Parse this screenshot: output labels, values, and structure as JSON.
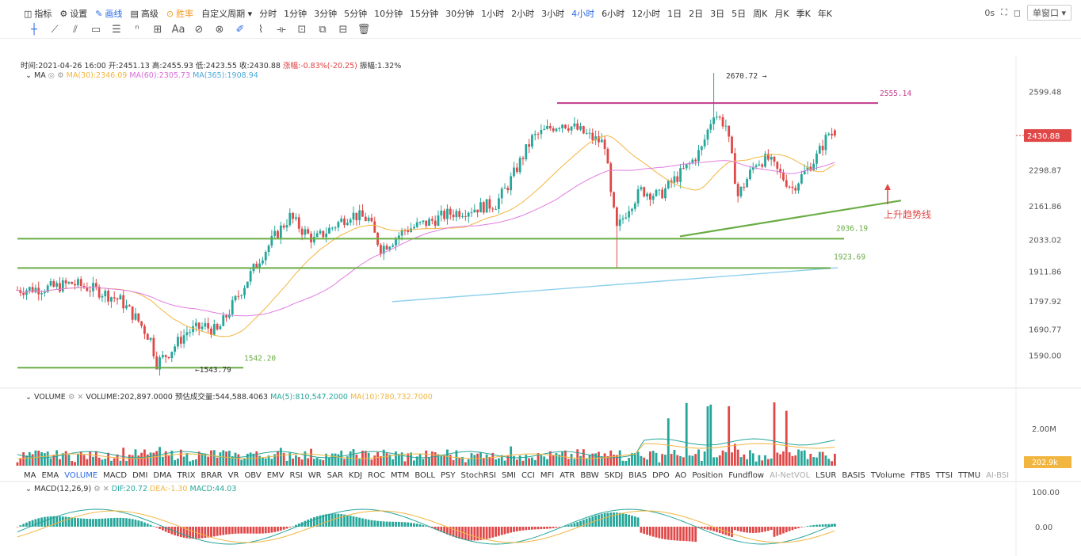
{
  "toolbar": {
    "items": [
      {
        "icon": "indicator-icon",
        "label": "指标"
      },
      {
        "icon": "settings-icon",
        "label": "设置"
      },
      {
        "icon": "pen-icon",
        "label": "画线",
        "active": true
      },
      {
        "icon": "advanced-icon",
        "label": "高级"
      },
      {
        "icon": "win-rate-icon",
        "label": "胜率",
        "win": true
      }
    ],
    "custom_period": "自定义周期",
    "periods": [
      "分时",
      "1分钟",
      "3分钟",
      "5分钟",
      "10分钟",
      "15分钟",
      "30分钟",
      "1小时",
      "2小时",
      "3小时",
      "4小时",
      "6小时",
      "12小时",
      "1日",
      "2日",
      "3日",
      "5日",
      "周K",
      "月K",
      "季K",
      "年K"
    ],
    "active_period": "4小时",
    "latency": "0s",
    "window_mode": "单窗口"
  },
  "draw_tools": [
    "crosshair-icon",
    "trend-line-icon",
    "parallel-lines-icon",
    "rectangle-icon",
    "horizontal-lines-icon",
    "fib-icon",
    "measure-icon",
    "text-icon",
    "magnet-icon",
    "lock-icon",
    "eraser-icon",
    "brush-icon",
    "pattern-icon",
    "position-icon",
    "clone-icon",
    "template-icon",
    "delete-icon"
  ],
  "ohlc": {
    "time": "时间:2021-04-26 16:00",
    "open": "开:2451.13",
    "high": "高:2455.93",
    "low": "低:2423.55",
    "close": "收:2430.88",
    "change": "涨幅:-0.83%(-20.25)",
    "amplitude": "振幅:1.32%"
  },
  "ma_legend": {
    "name": "MA",
    "ma30": "MA(30):2346.09",
    "ma60": "MA(60):2305.73",
    "ma365": "MA(365):1908.94"
  },
  "volume_legend": {
    "name": "VOLUME",
    "vol": "VOLUME:202,897.0000",
    "est": "预估成交量:544,588.4063",
    "ma5": "MA(5):810,547.2000",
    "ma10": "MA(10):780,732.7000"
  },
  "macd_legend": {
    "name": "MACD(12,26,9)",
    "dif": "DIF:20.72",
    "dea": "DEA:-1.30",
    "macd": "MACD:44.03"
  },
  "indicators": [
    "MA",
    "EMA",
    "VOLUME",
    "MACD",
    "DMI",
    "DMA",
    "TRIX",
    "BRAR",
    "VR",
    "OBV",
    "EMV",
    "RSI",
    "WR",
    "SAR",
    "KDJ",
    "ROC",
    "MTM",
    "BOLL",
    "PSY",
    "StochRSI",
    "SMI",
    "CCI",
    "MFI",
    "ATR",
    "BBW",
    "SKDJ",
    "BIAS",
    "DPO",
    "AO",
    "Position",
    "Fundflow",
    "AI-NetVOL",
    "LSUR",
    "BASIS",
    "TVolume",
    "FTBS",
    "TTSI",
    "TTMU",
    "AI-BSI"
  ],
  "indicators_active": [
    "VOLUME"
  ],
  "indicators_dim": [
    "AI-NetVOL",
    "AI-BSI"
  ],
  "colors": {
    "up": "#26a69a",
    "down": "#e04848",
    "ma30": "#f2b640",
    "ma60": "#e07de0",
    "ma365": "#8fd0ec",
    "green_line": "#6aad45",
    "magenta_line": "#c0398a",
    "accent": "#2e6be6"
  },
  "chart_data": {
    "type": "candlestick",
    "price_axis": {
      "ticks": [
        2599.48,
        2430.88,
        2298.87,
        2161.86,
        2033.02,
        1911.86,
        1797.92,
        1690.77,
        1590.0
      ],
      "range": [
        1500,
        2700
      ]
    },
    "current_price": "2430.88",
    "annotations": {
      "high_label": "2670.72",
      "low_label": "1543.79",
      "level_1542": "1542.20",
      "level_2555": "2555.14",
      "level_2036": "2036.19",
      "level_1923": "1923.69",
      "trendline_text": "上升趋势线"
    },
    "horizontal_levels": [
      {
        "price": 2555.14,
        "color": "magenta"
      },
      {
        "price": 2036.19,
        "color": "green"
      },
      {
        "price": 1923.69,
        "color": "green"
      },
      {
        "price": 1542.2,
        "color": "green"
      }
    ],
    "anchors": [
      [
        0,
        1840
      ],
      [
        12,
        1850
      ],
      [
        18,
        1865
      ],
      [
        26,
        1840
      ],
      [
        34,
        1800
      ],
      [
        40,
        1720
      ],
      [
        44,
        1650
      ],
      [
        46,
        1560
      ],
      [
        50,
        1600
      ],
      [
        56,
        1680
      ],
      [
        62,
        1700
      ],
      [
        66,
        1680
      ],
      [
        68,
        1720
      ],
      [
        72,
        1800
      ],
      [
        76,
        1880
      ],
      [
        80,
        1960
      ],
      [
        86,
        2060
      ],
      [
        90,
        2120
      ],
      [
        94,
        2070
      ],
      [
        98,
        2030
      ],
      [
        104,
        2080
      ],
      [
        110,
        2130
      ],
      [
        116,
        2110
      ],
      [
        118,
        2050
      ],
      [
        120,
        2000
      ],
      [
        124,
        2030
      ],
      [
        128,
        2070
      ],
      [
        136,
        2100
      ],
      [
        142,
        2130
      ],
      [
        150,
        2150
      ],
      [
        158,
        2170
      ],
      [
        162,
        2240
      ],
      [
        166,
        2330
      ],
      [
        170,
        2420
      ],
      [
        176,
        2460
      ],
      [
        180,
        2480
      ],
      [
        184,
        2460
      ],
      [
        190,
        2420
      ],
      [
        194,
        2400
      ],
      [
        196,
        2200
      ],
      [
        198,
        2070
      ],
      [
        202,
        2160
      ],
      [
        206,
        2220
      ],
      [
        212,
        2200
      ],
      [
        216,
        2250
      ],
      [
        222,
        2320
      ],
      [
        226,
        2380
      ],
      [
        230,
        2520
      ],
      [
        234,
        2470
      ],
      [
        236,
        2340
      ],
      [
        238,
        2200
      ],
      [
        244,
        2330
      ],
      [
        248,
        2340
      ],
      [
        252,
        2280
      ],
      [
        256,
        2230
      ],
      [
        260,
        2290
      ],
      [
        264,
        2350
      ],
      [
        268,
        2440
      ],
      [
        270,
        2430
      ]
    ],
    "volume_axis": {
      "ticks": [
        "2.00M"
      ],
      "current": "202.9k"
    },
    "macd_axis": {
      "ticks": [
        "100.00",
        "0.00"
      ]
    }
  }
}
